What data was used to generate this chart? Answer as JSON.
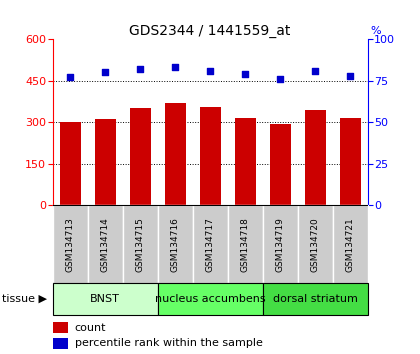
{
  "title": "GDS2344 / 1441559_at",
  "samples": [
    "GSM134713",
    "GSM134714",
    "GSM134715",
    "GSM134716",
    "GSM134717",
    "GSM134718",
    "GSM134719",
    "GSM134720",
    "GSM134721"
  ],
  "counts": [
    300,
    310,
    350,
    370,
    355,
    315,
    295,
    345,
    315
  ],
  "percentiles": [
    77,
    80,
    82,
    83,
    81,
    79,
    76,
    81,
    78
  ],
  "ylim_left": [
    0,
    600
  ],
  "ylim_right": [
    0,
    100
  ],
  "yticks_left": [
    0,
    150,
    300,
    450,
    600
  ],
  "yticks_right": [
    0,
    25,
    50,
    75,
    100
  ],
  "bar_color": "#cc0000",
  "dot_color": "#0000cc",
  "tissue_groups": [
    {
      "label": "BNST",
      "start": 0,
      "end": 3,
      "color": "#ccffcc"
    },
    {
      "label": "nucleus accumbens",
      "start": 3,
      "end": 6,
      "color": "#66ff66"
    },
    {
      "label": "dorsal striatum",
      "start": 6,
      "end": 9,
      "color": "#44dd44"
    }
  ],
  "legend_items": [
    {
      "label": "count",
      "color": "#cc0000"
    },
    {
      "label": "percentile rank within the sample",
      "color": "#0000cc"
    }
  ],
  "bar_width": 0.6,
  "sample_box_color": "#cccccc",
  "background_color": "#ffffff",
  "tissue_label": "tissue"
}
